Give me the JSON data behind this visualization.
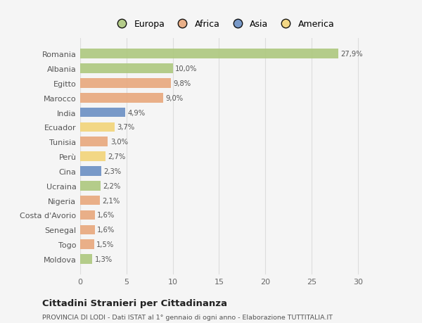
{
  "countries": [
    "Romania",
    "Albania",
    "Egitto",
    "Marocco",
    "India",
    "Ecuador",
    "Tunisia",
    "Perù",
    "Cina",
    "Ucraina",
    "Nigeria",
    "Costa d'Avorio",
    "Senegal",
    "Togo",
    "Moldova"
  ],
  "values": [
    27.9,
    10.0,
    9.8,
    9.0,
    4.9,
    3.7,
    3.0,
    2.7,
    2.3,
    2.2,
    2.1,
    1.6,
    1.6,
    1.5,
    1.3
  ],
  "labels": [
    "27,9%",
    "10,0%",
    "9,8%",
    "9,0%",
    "4,9%",
    "3,7%",
    "3,0%",
    "2,7%",
    "2,3%",
    "2,2%",
    "2,1%",
    "1,6%",
    "1,6%",
    "1,5%",
    "1,3%"
  ],
  "colors": [
    "#adc87e",
    "#adc87e",
    "#e8a87c",
    "#e8a87c",
    "#6b8fc4",
    "#f2d479",
    "#e8a87c",
    "#f2d479",
    "#6b8fc4",
    "#adc87e",
    "#e8a87c",
    "#e8a87c",
    "#e8a87c",
    "#e8a87c",
    "#adc87e"
  ],
  "legend": [
    {
      "label": "Europa",
      "color": "#adc87e"
    },
    {
      "label": "Africa",
      "color": "#e8a87c"
    },
    {
      "label": "Asia",
      "color": "#6b8fc4"
    },
    {
      "label": "America",
      "color": "#f2d479"
    }
  ],
  "title": "Cittadini Stranieri per Cittadinanza",
  "subtitle": "PROVINCIA DI LODI - Dati ISTAT al 1° gennaio di ogni anno - Elaborazione TUTTITALIA.IT",
  "xlim": [
    0,
    31
  ],
  "xticks": [
    0,
    5,
    10,
    15,
    20,
    25,
    30
  ],
  "bg_color": "#f5f5f5",
  "grid_color": "#dddddd",
  "bar_height": 0.65
}
